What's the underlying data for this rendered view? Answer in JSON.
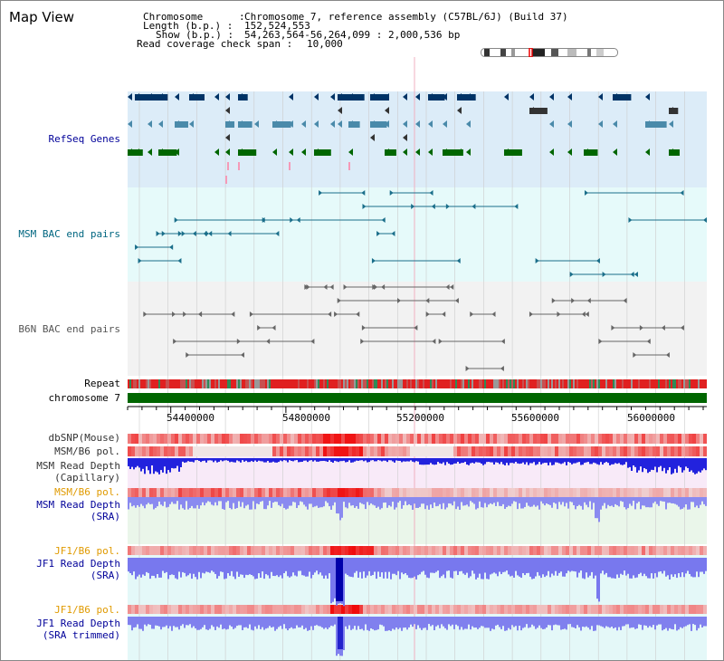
{
  "app": {
    "title": "Map View"
  },
  "header": {
    "chromosome_key": "Chromosome      :",
    "chromosome_val": "Chromosome 7, reference assembly (C57BL/6J) (Build 37)",
    "length_key": "Length (b.p.) :",
    "length_val": "152,524,553",
    "show_key": "Show (b.p.) :",
    "show_val": "54,263,564-56,264,099 : 2,000,536 bp",
    "span_key": "Read coverage check span :",
    "span_val": "10,000"
  },
  "tracks": {
    "refseq": "RefSeq Genes",
    "msm_bac": "MSM BAC end pairs",
    "b6n_bac": "B6N BAC end pairs",
    "repeat": "Repeat",
    "chromosome": "chromosome 7",
    "dbsnp": "dbSNP(Mouse)",
    "msm_pol": "MSM/B6 pol.",
    "msm_depth_cap1": "MSM Read Depth",
    "msm_depth_cap2": "(Capillary)",
    "msm_pol2": "MSM/B6 pol.",
    "msm_depth_sra1": "MSM Read Depth",
    "msm_depth_sra2": "(SRA)",
    "jf1_pol": "JF1/B6 pol.",
    "jf1_depth1": "JF1 Read Depth",
    "jf1_depth2": "(SRA)",
    "jf1_pol2": "JF1/B6 pol.",
    "jf1_trim1": "JF1 Read Depth",
    "jf1_trim2": "(SRA trimmed)"
  },
  "axis": {
    "ticks": [
      "54400000",
      "54800000",
      "55200000",
      "55600000",
      "56000000"
    ]
  },
  "colors": {
    "refseq_bg": "#dcecf8",
    "msm_bg": "#e6fafa",
    "b6n_bg": "#f2f2f2",
    "label_blue": "#000099",
    "label_teal": "#006680",
    "label_orange": "#e09a00",
    "depth_blue": "#2222dd",
    "chromosome_green": "#006600"
  },
  "icons": {
    "ideogram": "chromosome-ideogram-icon"
  }
}
